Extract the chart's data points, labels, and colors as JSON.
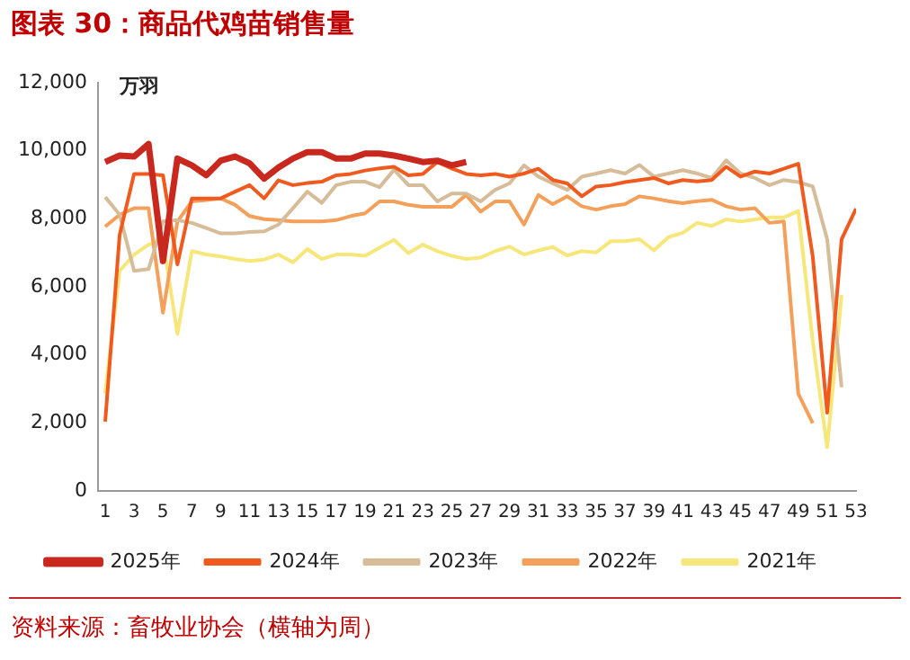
{
  "chart_data": {
    "type": "line",
    "title": "图表 30：商品代鸡苗销售量",
    "ylabel": "万羽",
    "annotations": [
      "资料来源：畜牧业协会（横轴为周）"
    ],
    "x": [
      1,
      2,
      3,
      4,
      5,
      6,
      7,
      8,
      9,
      10,
      11,
      12,
      13,
      14,
      15,
      16,
      17,
      18,
      19,
      20,
      21,
      22,
      23,
      24,
      25,
      26,
      27,
      28,
      29,
      30,
      31,
      32,
      33,
      34,
      35,
      36,
      37,
      38,
      39,
      40,
      41,
      42,
      43,
      44,
      45,
      46,
      47,
      48,
      49,
      50,
      51,
      52,
      53
    ],
    "xlim": [
      0.5,
      53
    ],
    "xticks": [
      1,
      3,
      5,
      7,
      9,
      11,
      13,
      15,
      17,
      19,
      21,
      23,
      25,
      27,
      29,
      31,
      33,
      35,
      37,
      39,
      41,
      43,
      45,
      47,
      49,
      51,
      53
    ],
    "ylim": [
      0,
      12000
    ],
    "yticks": [
      {
        "value": 0,
        "label": "0"
      },
      {
        "value": 2000,
        "label": "2,000"
      },
      {
        "value": 4000,
        "label": "4,000"
      },
      {
        "value": 6000,
        "label": "6,000"
      },
      {
        "value": 8000,
        "label": "8,000"
      },
      {
        "value": 10000,
        "label": "10,000"
      },
      {
        "value": 12000,
        "label": "12,000"
      }
    ],
    "grid": false,
    "legend": "bottom",
    "marker": "none",
    "line_style": "solid",
    "series": [
      {
        "name": "2025年",
        "color": "#c8281e",
        "values": [
          9670,
          9860,
          9830,
          10200,
          6760,
          9770,
          9570,
          9280,
          9710,
          9830,
          9630,
          9180,
          9510,
          9770,
          9960,
          9960,
          9770,
          9770,
          9920,
          9920,
          9860,
          9770,
          9670,
          9710,
          9570,
          9670,
          null,
          null,
          null,
          null,
          null,
          null,
          null,
          null,
          null,
          null,
          null,
          null,
          null,
          null,
          null,
          null,
          null,
          null,
          null,
          null,
          null,
          null,
          null,
          null,
          null,
          null,
          null
        ]
      },
      {
        "name": "2024年",
        "color": "#f05a1e",
        "values": [
          2040,
          7530,
          9320,
          9320,
          9280,
          6660,
          8600,
          8600,
          8600,
          8800,
          8990,
          8600,
          9130,
          8990,
          9050,
          9090,
          9280,
          9320,
          9420,
          9480,
          9530,
          9280,
          9320,
          9670,
          9480,
          9320,
          9280,
          9320,
          9240,
          9330,
          9470,
          9140,
          9040,
          8660,
          8950,
          8990,
          9080,
          9140,
          9200,
          9040,
          9140,
          9100,
          9140,
          9530,
          9240,
          9390,
          9330,
          9470,
          9620,
          6900,
          2300,
          7400,
          8300
        ]
      },
      {
        "name": "2023年",
        "color": "#d6bc98",
        "values": [
          8640,
          8120,
          6470,
          6520,
          7920,
          7960,
          7880,
          7730,
          7570,
          7570,
          7610,
          7630,
          7830,
          8310,
          8800,
          8470,
          8990,
          9090,
          9090,
          8930,
          9440,
          8990,
          8990,
          8510,
          8740,
          8740,
          8510,
          8850,
          9040,
          9570,
          9240,
          9040,
          8850,
          9240,
          9330,
          9430,
          9330,
          9580,
          9240,
          9330,
          9430,
          9330,
          9200,
          9720,
          9330,
          9200,
          8990,
          9140,
          9080,
          8950,
          7400,
          3050,
          null
        ]
      },
      {
        "name": "2022年",
        "color": "#f4a05a",
        "values": [
          7770,
          8120,
          8310,
          8310,
          5240,
          7920,
          8510,
          8550,
          8600,
          8410,
          8080,
          7990,
          7960,
          7920,
          7920,
          7920,
          7960,
          8080,
          8160,
          8510,
          8510,
          8410,
          8350,
          8350,
          8350,
          8700,
          8210,
          8510,
          8510,
          7830,
          8700,
          8430,
          8660,
          8370,
          8270,
          8370,
          8430,
          8660,
          8600,
          8520,
          8460,
          8520,
          8560,
          8370,
          8270,
          8310,
          7880,
          7920,
          2860,
          1990,
          null,
          null,
          null
        ]
      },
      {
        "name": "2021年",
        "color": "#f7e77a",
        "values": [
          2870,
          6470,
          6950,
          7240,
          7380,
          4620,
          7050,
          6950,
          6890,
          6820,
          6760,
          6800,
          6950,
          6720,
          7110,
          6820,
          6950,
          6950,
          6910,
          7150,
          7380,
          6990,
          7240,
          7050,
          6910,
          6820,
          6860,
          7050,
          7180,
          6950,
          7070,
          7170,
          6920,
          7050,
          7010,
          7340,
          7340,
          7400,
          7070,
          7460,
          7590,
          7880,
          7790,
          7980,
          7920,
          7980,
          8040,
          8040,
          8230,
          4410,
          1280,
          5760,
          null
        ]
      }
    ]
  }
}
